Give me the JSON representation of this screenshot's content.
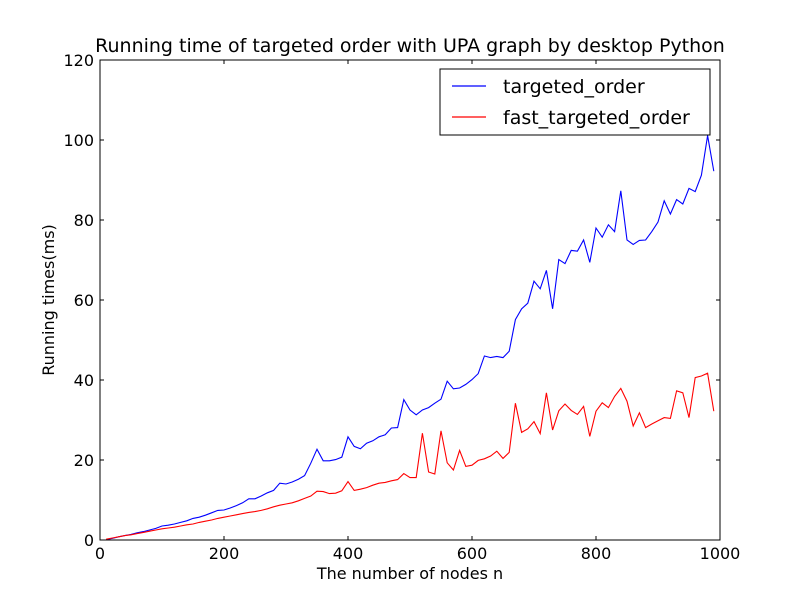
{
  "chart_data": {
    "type": "line",
    "title": "Running time of targeted order with UPA graph by desktop Python",
    "xlabel": "The number of nodes n",
    "ylabel": "Running times(ms)",
    "xlim": [
      0,
      1000
    ],
    "ylim": [
      0,
      120
    ],
    "xticks": [
      "0",
      "200",
      "400",
      "600",
      "800",
      "1000"
    ],
    "yticks": [
      "0",
      "20",
      "40",
      "60",
      "80",
      "100",
      "120"
    ],
    "grid": false,
    "legend_position": "top-right",
    "x": [
      10,
      20,
      30,
      40,
      50,
      60,
      70,
      80,
      90,
      100,
      110,
      120,
      130,
      140,
      150,
      160,
      170,
      180,
      190,
      200,
      210,
      220,
      230,
      240,
      250,
      260,
      270,
      280,
      290,
      300,
      310,
      320,
      330,
      340,
      350,
      360,
      370,
      380,
      390,
      400,
      410,
      420,
      430,
      440,
      450,
      460,
      470,
      480,
      490,
      500,
      510,
      520,
      530,
      540,
      550,
      560,
      570,
      580,
      590,
      600,
      610,
      620,
      630,
      640,
      650,
      660,
      670,
      680,
      690,
      700,
      710,
      720,
      730,
      740,
      750,
      760,
      770,
      780,
      790,
      800,
      810,
      820,
      830,
      840,
      850,
      860,
      870,
      880,
      890,
      900,
      910,
      920,
      930,
      940,
      950,
      960,
      970,
      980,
      990
    ],
    "series": [
      {
        "name": "targeted_order",
        "color": "#0000ff",
        "values": [
          0.1,
          0.4,
          0.8,
          1.1,
          1.4,
          1.8,
          2.1,
          2.5,
          2.9,
          3.5,
          3.7,
          4.0,
          4.4,
          4.8,
          5.4,
          5.7,
          6.2,
          6.8,
          7.4,
          7.5,
          8.0,
          8.6,
          9.3,
          10.3,
          10.3,
          11.0,
          11.8,
          12.4,
          14.2,
          14.0,
          14.5,
          15.2,
          16.1,
          19.2,
          22.7,
          19.8,
          19.8,
          20.1,
          20.7,
          25.8,
          23.4,
          22.8,
          24.2,
          24.8,
          25.8,
          26.3,
          28.0,
          28.1,
          35.1,
          32.5,
          31.3,
          32.5,
          33.1,
          34.2,
          35.2,
          39.7,
          37.8,
          38.0,
          38.9,
          40.1,
          41.6,
          46.0,
          45.6,
          45.9,
          45.6,
          47.2,
          55.1,
          57.8,
          59.2,
          64.7,
          62.8,
          67.4,
          57.8,
          70.1,
          69.1,
          72.4,
          72.2,
          75.0,
          69.4,
          78.0,
          75.7,
          78.8,
          77.1,
          87.3,
          75.0,
          73.9,
          74.9,
          75.0,
          77.1,
          79.5,
          84.8,
          81.5,
          85.1,
          84.0,
          87.9,
          87.1,
          91.2,
          101.1,
          92.2
        ]
      },
      {
        "name": "fast_targeted_order",
        "color": "#ff0000",
        "values": [
          0.2,
          0.5,
          0.8,
          1.1,
          1.3,
          1.6,
          1.9,
          2.2,
          2.5,
          2.8,
          3.0,
          3.2,
          3.5,
          3.8,
          4.0,
          4.4,
          4.7,
          5.0,
          5.4,
          5.7,
          6.0,
          6.3,
          6.6,
          6.9,
          7.1,
          7.4,
          7.8,
          8.3,
          8.7,
          9.0,
          9.3,
          9.8,
          10.4,
          11.0,
          12.2,
          12.1,
          11.6,
          11.7,
          12.3,
          14.6,
          12.4,
          12.7,
          13.1,
          13.7,
          14.2,
          14.4,
          14.8,
          15.1,
          16.6,
          15.6,
          15.6,
          26.7,
          17.0,
          16.5,
          27.3,
          19.3,
          17.5,
          22.4,
          18.4,
          18.7,
          19.9,
          20.3,
          21.0,
          22.2,
          20.4,
          21.9,
          34.2,
          26.9,
          27.8,
          29.6,
          26.6,
          36.8,
          27.5,
          32.3,
          34.0,
          32.4,
          31.4,
          33.4,
          25.9,
          32.2,
          34.3,
          33.1,
          35.9,
          37.9,
          34.7,
          28.5,
          31.8,
          28.1,
          29.0,
          29.8,
          30.6,
          30.4,
          37.3,
          36.8,
          30.6,
          40.6,
          41.0,
          41.7,
          32.2
        ]
      }
    ]
  }
}
